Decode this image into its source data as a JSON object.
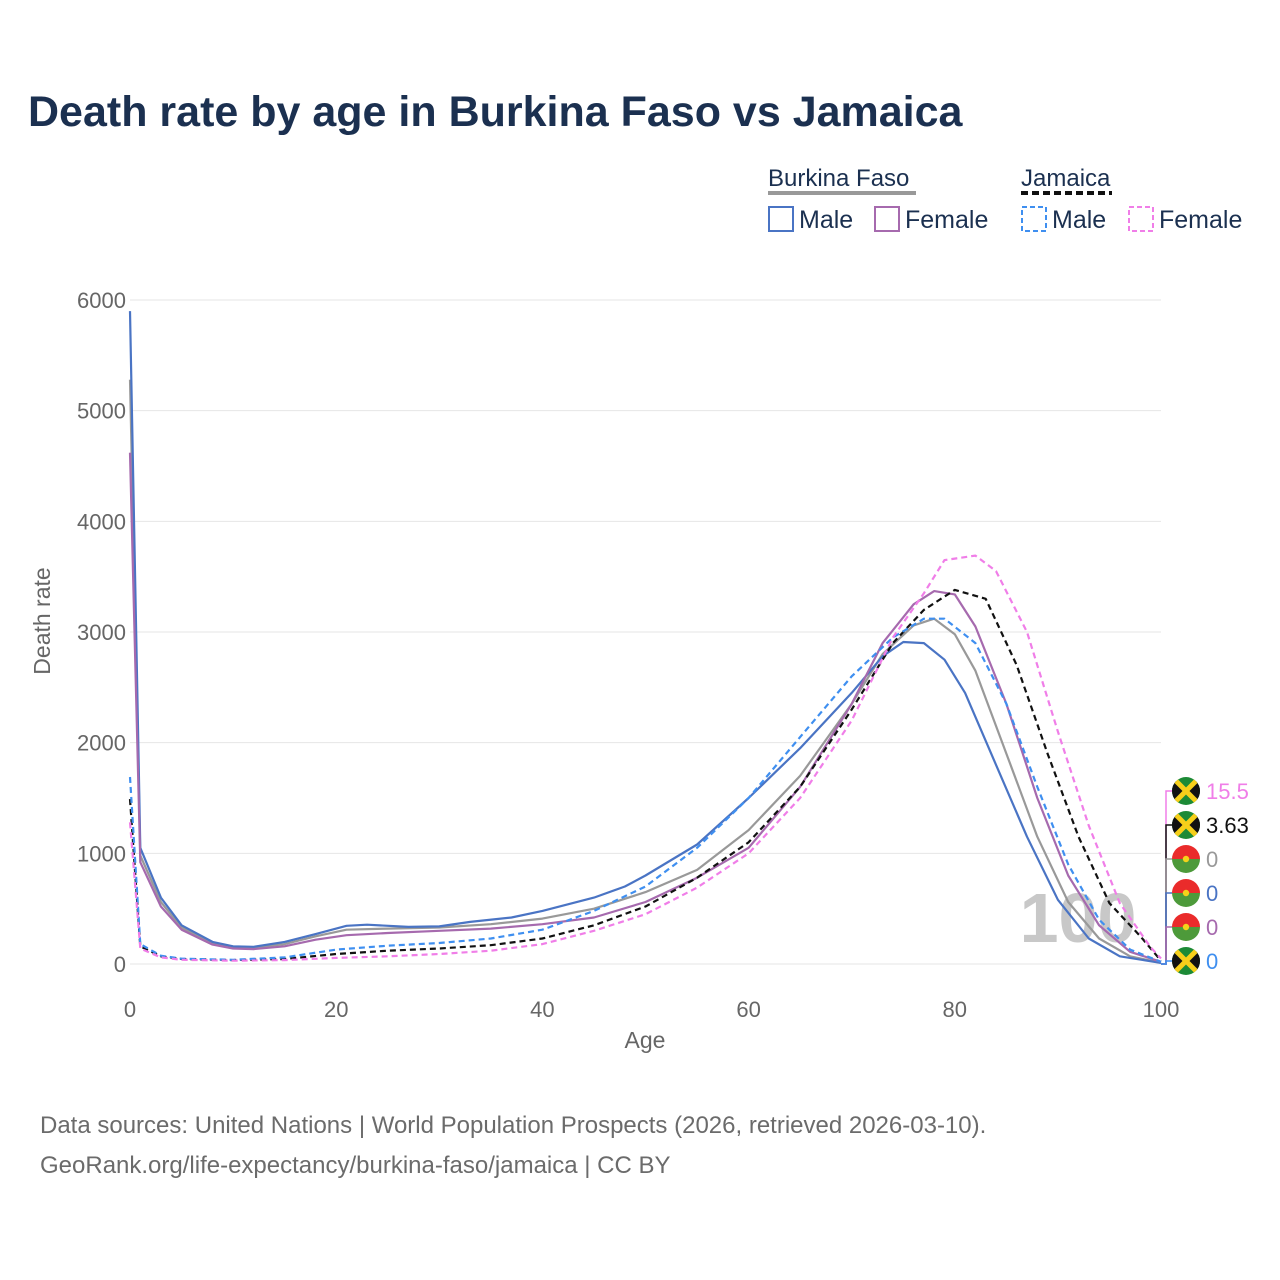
{
  "title": "Death rate by age in Burkina Faso vs Jamaica",
  "legend": {
    "groups": [
      {
        "name": "Burkina Faso",
        "swatch_color": "#999999",
        "dashed": false,
        "items": [
          {
            "label": "Male",
            "color": "#4a74c4"
          },
          {
            "label": "Female",
            "color": "#a66aae"
          }
        ]
      },
      {
        "name": "Jamaica",
        "swatch_color": "#111111",
        "dashed": true,
        "items": [
          {
            "label": "Male",
            "color": "#3f8ff0"
          },
          {
            "label": "Female",
            "color": "#f07ee8"
          }
        ]
      }
    ]
  },
  "source": {
    "line1": "Data sources: United Nations | World Population Prospects (2026, retrieved 2026-03-10).",
    "line2": "GeoRank.org/life-expectancy/burkina-faso/jamaica | CC BY"
  },
  "chart_data": {
    "type": "line",
    "title": "Death rate by age in Burkina Faso vs Jamaica",
    "xlabel": "Age",
    "ylabel": "Death rate",
    "xlim": [
      0,
      100
    ],
    "ylim": [
      0,
      6000
    ],
    "x_ticks": [
      0,
      20,
      40,
      60,
      80,
      100
    ],
    "y_ticks": [
      0,
      1000,
      2000,
      3000,
      4000,
      5000,
      6000
    ],
    "watermark": "100",
    "series": [
      {
        "name": "Burkina Faso Total",
        "color": "#999999",
        "dashed": false,
        "points": [
          [
            0,
            5280
          ],
          [
            1,
            980
          ],
          [
            3,
            560
          ],
          [
            5,
            330
          ],
          [
            8,
            190
          ],
          [
            10,
            155
          ],
          [
            12,
            148
          ],
          [
            15,
            180
          ],
          [
            18,
            250
          ],
          [
            21,
            310
          ],
          [
            25,
            320
          ],
          [
            30,
            330
          ],
          [
            35,
            360
          ],
          [
            40,
            410
          ],
          [
            45,
            500
          ],
          [
            50,
            650
          ],
          [
            55,
            850
          ],
          [
            60,
            1210
          ],
          [
            65,
            1700
          ],
          [
            70,
            2350
          ],
          [
            73,
            2800
          ],
          [
            76,
            3060
          ],
          [
            78,
            3120
          ],
          [
            80,
            2980
          ],
          [
            82,
            2650
          ],
          [
            85,
            1900
          ],
          [
            88,
            1150
          ],
          [
            91,
            560
          ],
          [
            94,
            230
          ],
          [
            97,
            70
          ],
          [
            100,
            10
          ]
        ]
      },
      {
        "name": "Burkina Faso Male",
        "color": "#4a74c4",
        "dashed": false,
        "points": [
          [
            0,
            5900
          ],
          [
            1,
            1050
          ],
          [
            3,
            600
          ],
          [
            5,
            350
          ],
          [
            8,
            200
          ],
          [
            10,
            160
          ],
          [
            12,
            155
          ],
          [
            15,
            200
          ],
          [
            18,
            270
          ],
          [
            21,
            345
          ],
          [
            23,
            355
          ],
          [
            27,
            335
          ],
          [
            30,
            340
          ],
          [
            33,
            380
          ],
          [
            37,
            420
          ],
          [
            40,
            480
          ],
          [
            45,
            600
          ],
          [
            48,
            700
          ],
          [
            50,
            800
          ],
          [
            55,
            1080
          ],
          [
            60,
            1500
          ],
          [
            65,
            1950
          ],
          [
            70,
            2450
          ],
          [
            73,
            2780
          ],
          [
            75,
            2910
          ],
          [
            77,
            2900
          ],
          [
            79,
            2750
          ],
          [
            81,
            2450
          ],
          [
            84,
            1800
          ],
          [
            87,
            1150
          ],
          [
            90,
            580
          ],
          [
            93,
            230
          ],
          [
            96,
            70
          ],
          [
            100,
            10
          ]
        ]
      },
      {
        "name": "Burkina Faso Female",
        "color": "#a66aae",
        "dashed": false,
        "points": [
          [
            0,
            4620
          ],
          [
            1,
            920
          ],
          [
            3,
            520
          ],
          [
            5,
            310
          ],
          [
            8,
            175
          ],
          [
            10,
            140
          ],
          [
            12,
            135
          ],
          [
            15,
            160
          ],
          [
            18,
            220
          ],
          [
            21,
            260
          ],
          [
            25,
            280
          ],
          [
            30,
            300
          ],
          [
            35,
            320
          ],
          [
            40,
            360
          ],
          [
            45,
            420
          ],
          [
            50,
            560
          ],
          [
            55,
            780
          ],
          [
            60,
            1050
          ],
          [
            65,
            1600
          ],
          [
            70,
            2350
          ],
          [
            73,
            2900
          ],
          [
            76,
            3250
          ],
          [
            78,
            3370
          ],
          [
            80,
            3340
          ],
          [
            82,
            3050
          ],
          [
            85,
            2350
          ],
          [
            88,
            1500
          ],
          [
            91,
            800
          ],
          [
            94,
            350
          ],
          [
            97,
            110
          ],
          [
            100,
            20
          ]
        ]
      },
      {
        "name": "Jamaica Total",
        "color": "#111111",
        "dashed": true,
        "points": [
          [
            0,
            1490
          ],
          [
            1,
            160
          ],
          [
            3,
            70
          ],
          [
            5,
            45
          ],
          [
            10,
            35
          ],
          [
            15,
            45
          ],
          [
            20,
            90
          ],
          [
            25,
            120
          ],
          [
            30,
            140
          ],
          [
            35,
            170
          ],
          [
            40,
            230
          ],
          [
            45,
            350
          ],
          [
            50,
            520
          ],
          [
            55,
            780
          ],
          [
            60,
            1100
          ],
          [
            65,
            1600
          ],
          [
            70,
            2300
          ],
          [
            74,
            2900
          ],
          [
            77,
            3200
          ],
          [
            80,
            3380
          ],
          [
            83,
            3300
          ],
          [
            86,
            2700
          ],
          [
            89,
            1900
          ],
          [
            92,
            1150
          ],
          [
            95,
            550
          ],
          [
            98,
            250
          ],
          [
            100,
            30
          ]
        ]
      },
      {
        "name": "Jamaica Male",
        "color": "#3f8ff0",
        "dashed": true,
        "points": [
          [
            0,
            1690
          ],
          [
            1,
            180
          ],
          [
            3,
            75
          ],
          [
            5,
            48
          ],
          [
            10,
            38
          ],
          [
            15,
            60
          ],
          [
            20,
            130
          ],
          [
            25,
            165
          ],
          [
            30,
            190
          ],
          [
            35,
            230
          ],
          [
            40,
            310
          ],
          [
            45,
            480
          ],
          [
            50,
            700
          ],
          [
            55,
            1050
          ],
          [
            60,
            1500
          ],
          [
            65,
            2050
          ],
          [
            70,
            2600
          ],
          [
            74,
            2950
          ],
          [
            77,
            3120
          ],
          [
            79,
            3120
          ],
          [
            82,
            2900
          ],
          [
            85,
            2350
          ],
          [
            88,
            1600
          ],
          [
            91,
            900
          ],
          [
            94,
            400
          ],
          [
            97,
            130
          ],
          [
            100,
            20
          ]
        ]
      },
      {
        "name": "Jamaica Female",
        "color": "#f07ee8",
        "dashed": true,
        "points": [
          [
            0,
            1280
          ],
          [
            1,
            140
          ],
          [
            3,
            60
          ],
          [
            5,
            38
          ],
          [
            10,
            30
          ],
          [
            15,
            35
          ],
          [
            20,
            55
          ],
          [
            25,
            70
          ],
          [
            30,
            90
          ],
          [
            35,
            120
          ],
          [
            40,
            180
          ],
          [
            45,
            300
          ],
          [
            50,
            450
          ],
          [
            55,
            690
          ],
          [
            60,
            1000
          ],
          [
            65,
            1500
          ],
          [
            70,
            2200
          ],
          [
            74,
            2950
          ],
          [
            77,
            3350
          ],
          [
            79,
            3650
          ],
          [
            82,
            3690
          ],
          [
            84,
            3550
          ],
          [
            87,
            3000
          ],
          [
            90,
            2100
          ],
          [
            93,
            1250
          ],
          [
            96,
            550
          ],
          [
            99,
            150
          ],
          [
            100,
            50
          ]
        ]
      }
    ],
    "end_labels": [
      {
        "value": "15.5",
        "color": "#f07ee8",
        "country": "Jamaica"
      },
      {
        "value": "3.63",
        "color": "#111111",
        "country": "Jamaica"
      },
      {
        "value": "0",
        "color": "#999999",
        "country": "Burkina Faso"
      },
      {
        "value": "0",
        "color": "#4a74c4",
        "country": "Burkina Faso"
      },
      {
        "value": "0",
        "color": "#a66aae",
        "country": "Burkina Faso"
      },
      {
        "value": "0",
        "color": "#3f8ff0",
        "country": "Jamaica"
      }
    ]
  }
}
